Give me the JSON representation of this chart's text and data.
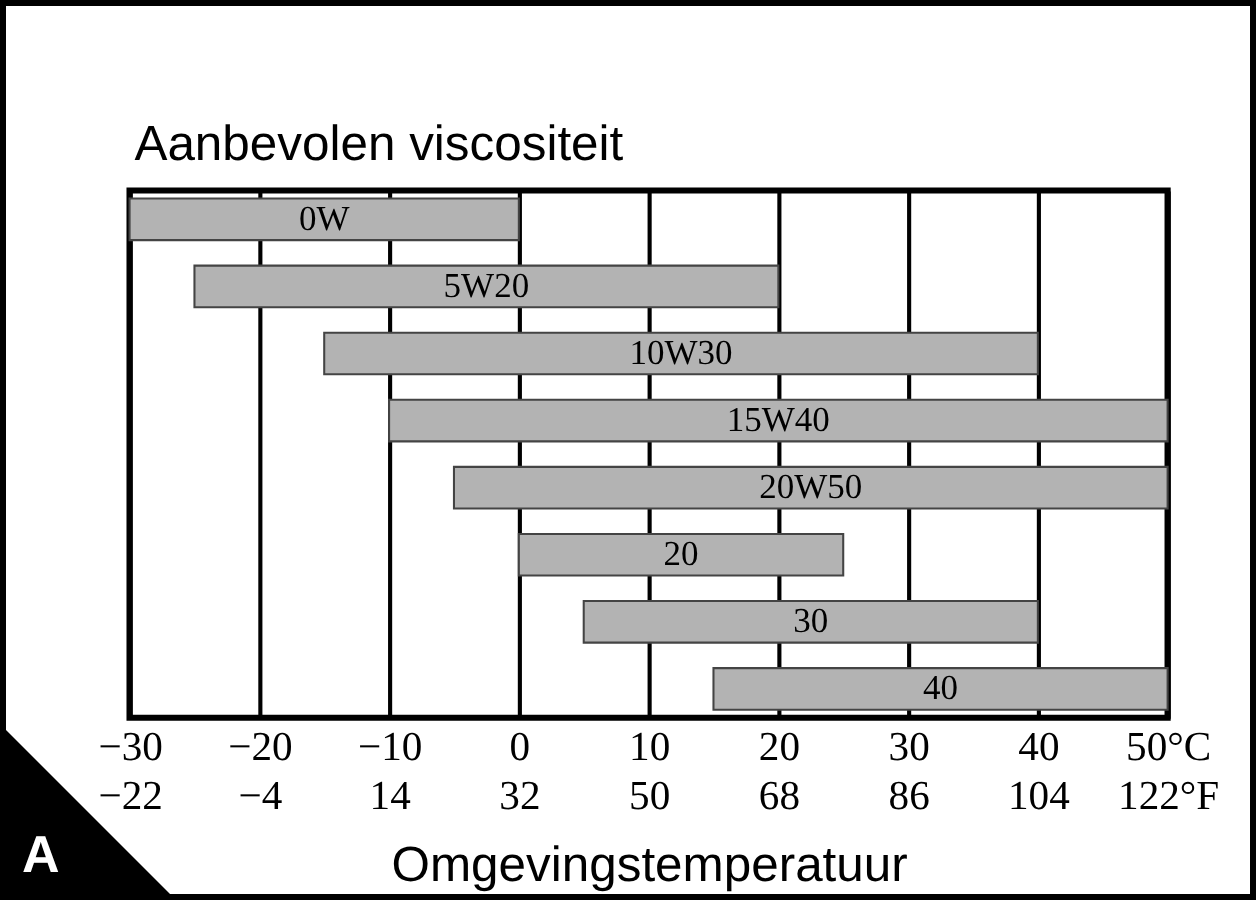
{
  "chart_data": {
    "type": "bar",
    "orientation": "horizontal",
    "title": "Aanbevolen viscositeit",
    "xlabel": "Omgevingstemperatuur",
    "categories": [
      "0W",
      "5W20",
      "10W30",
      "15W40",
      "20W50",
      "20",
      "30",
      "40"
    ],
    "base": [
      -30,
      -25,
      -15,
      -10,
      -5,
      0,
      5,
      15
    ],
    "values": [
      30,
      45,
      55,
      60,
      55,
      25,
      35,
      35
    ],
    "color": "#b3b3b3",
    "xlim": [
      -30,
      50
    ],
    "xticks": [
      -30,
      -20,
      -10,
      0,
      10,
      20,
      30,
      40,
      {
        "value": 50,
        "label": "50°C"
      }
    ],
    "x2lim": [
      -22,
      122
    ],
    "x2ticks": [
      -22,
      -4,
      14,
      32,
      50,
      68,
      86,
      104,
      {
        "value": 122,
        "label": "122°F"
      }
    ],
    "grid": "x",
    "annotations": [
      "A"
    ]
  }
}
